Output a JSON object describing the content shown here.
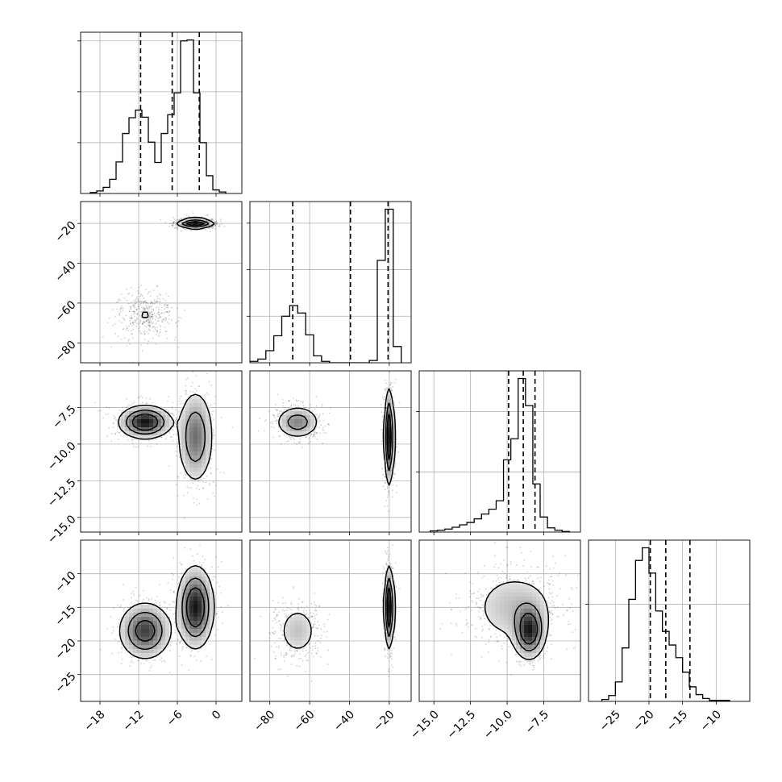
{
  "chart_data": {
    "type": "corner",
    "n_params": 4,
    "colors": {
      "hist": "#000000",
      "quantile": "#000000",
      "grid": "#b0b0b0",
      "scatter": "#000000",
      "contour": "#000000"
    },
    "grid": true,
    "params": [
      {
        "range": [
          -21,
          4
        ],
        "ticks": [
          -18,
          -12,
          -6,
          0
        ],
        "tick_labels": [
          "−18",
          "−12",
          "−6",
          "0"
        ],
        "hist_x0": -19.5,
        "hist_dx": 1,
        "hist": [
          0.02,
          0.05,
          0.12,
          0.28,
          0.62,
          1.18,
          1.49,
          1.64,
          1.5,
          1.01,
          0.61,
          1.18,
          1.55,
          1.98,
          3.0,
          3.02,
          1.98,
          1.0,
          0.35,
          0.07,
          0.03
        ],
        "quantiles": [
          -11.7,
          -6.8,
          -2.6
        ]
      },
      {
        "range": [
          -90,
          -9
        ],
        "ticks": [
          -80,
          -60,
          -40,
          -20
        ],
        "tick_labels": [
          "−80",
          "−60",
          "−40",
          "−20"
        ],
        "hist_x0": -90,
        "hist_dx": 4,
        "hist": [
          0.03,
          0.08,
          0.26,
          0.58,
          1.0,
          1.23,
          1.07,
          0.6,
          0.15,
          0.03,
          0,
          0,
          0,
          0,
          0,
          0.05,
          2.2,
          3.3,
          0.35
        ],
        "quantiles": [
          -68.5,
          -39.5,
          -20.6
        ]
      },
      {
        "range": [
          -16,
          -5
        ],
        "ticks": [
          -15,
          -12.5,
          -10,
          -7.5
        ],
        "tick_labels": [
          "−15.0",
          "−12.5",
          "−10.0",
          "−7.5"
        ],
        "hist_x0": -15.25,
        "hist_dx": 0.5,
        "hist": [
          0.02,
          0.03,
          0.05,
          0.08,
          0.12,
          0.16,
          0.22,
          0.3,
          0.38,
          0.52,
          1.2,
          1.55,
          2.55,
          2.1,
          0.8,
          0.25,
          0.07,
          0.03,
          0.01
        ],
        "quantiles": [
          -9.9,
          -8.9,
          -8.1
        ]
      },
      {
        "range": [
          -29,
          -5
        ],
        "ticks": [
          -25,
          -20,
          -15,
          -10
        ],
        "tick_labels": [
          "−25",
          "−20",
          "−15",
          "−10"
        ],
        "hist_x0": -27,
        "hist_dx": 1,
        "hist": [
          0.02,
          0.06,
          0.2,
          0.55,
          1.05,
          1.45,
          1.58,
          1.32,
          0.93,
          0.72,
          0.58,
          0.45,
          0.3,
          0.15,
          0.07,
          0.03,
          0.01,
          0.01,
          0.01
        ],
        "quantiles": [
          -19.8,
          -17.5,
          -13.9
        ]
      }
    ],
    "components": [
      {
        "weight": 0.45,
        "mean": [
          -11,
          -66,
          -8.5,
          -18.5
        ],
        "sd": [
          2.0,
          5.5,
          0.55,
          2.1
        ]
      },
      {
        "weight": 0.55,
        "mean": [
          -3.2,
          -20,
          -9.5,
          -15.0
        ],
        "sd": [
          1.4,
          1.2,
          1.6,
          3.0
        ]
      }
    ]
  }
}
